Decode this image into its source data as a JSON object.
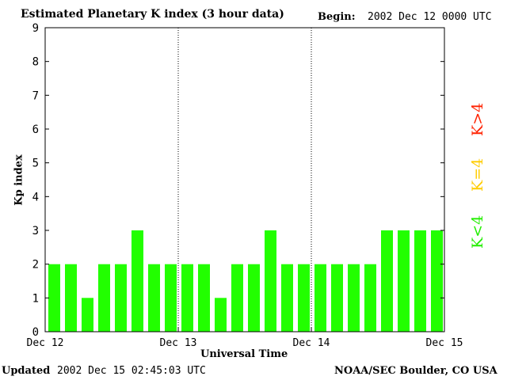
{
  "header": {
    "title": "Estimated Planetary K index (3 hour data)",
    "begin_label": "Begin:",
    "begin_value": "2002 Dec 12 0000 UTC"
  },
  "footer": {
    "updated_label": "Updated",
    "updated_value": "2002 Dec 15 02:45:03 UTC",
    "credit": "NOAA/SEC Boulder, CO USA"
  },
  "legend": [
    {
      "label": "K>4",
      "color": "#ff2200"
    },
    {
      "label": "K=4",
      "color": "#ffcc00"
    },
    {
      "label": "K<4",
      "color": "#22ee00"
    }
  ],
  "colors": {
    "bar_low": "#22ff00",
    "bar_mid": "#ffcc00",
    "bar_high": "#ff2200"
  },
  "chart_data": {
    "type": "bar",
    "title": "Estimated Planetary K index (3 hour data)",
    "xlabel": "Universal Time",
    "ylabel": "Kp index",
    "ylim": [
      0,
      9
    ],
    "yticks": [
      0,
      1,
      2,
      3,
      4,
      5,
      6,
      7,
      8,
      9
    ],
    "x_tick_labels": [
      "Dec 12",
      "Dec 13",
      "Dec 14",
      "Dec 15"
    ],
    "day_separators_after_bar": [
      8,
      16
    ],
    "values": [
      2,
      2,
      1,
      2,
      2,
      3,
      2,
      2,
      2,
      2,
      1,
      2,
      2,
      3,
      2,
      2,
      2,
      2,
      2,
      2,
      3,
      3,
      3,
      3
    ],
    "grid": false
  }
}
